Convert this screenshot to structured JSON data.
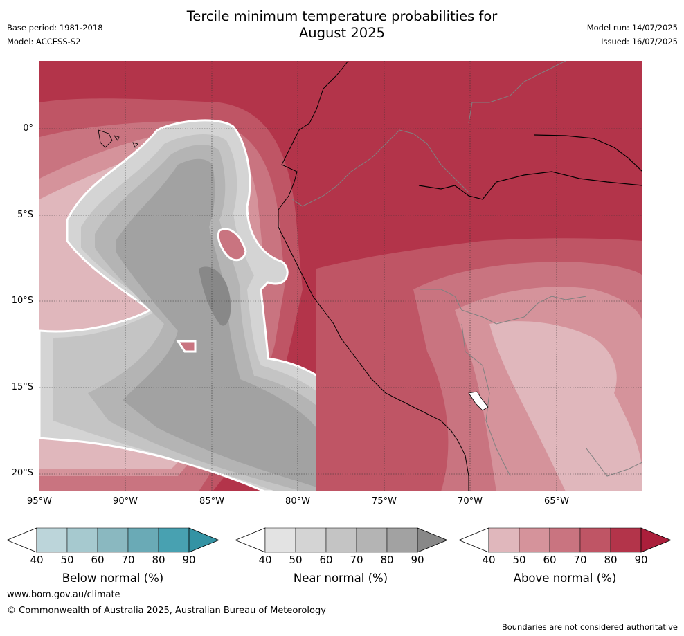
{
  "title": {
    "line1": "Tercile minimum temperature probabilities for",
    "line2": "August 2025"
  },
  "meta_left": {
    "base_period": "Base period: 1981-2018",
    "model": "Model: ACCESS-S2"
  },
  "meta_right": {
    "model_run": "Model run: 14/07/2025",
    "issued": "Issued: 16/07/2025"
  },
  "lat_labels": [
    "0°",
    "5°S",
    "10°S",
    "15°S",
    "20°S"
  ],
  "lon_labels": [
    "95°W",
    "90°W",
    "85°W",
    "80°W",
    "75°W",
    "70°W",
    "65°W"
  ],
  "colorbars": [
    {
      "title": "Below normal (%)",
      "ticks": [
        "40",
        "50",
        "60",
        "70",
        "80",
        "90"
      ],
      "colors": [
        "#bcd5da",
        "#a6c9cf",
        "#8ab8c0",
        "#6aaab6",
        "#48a1b1",
        "#3493a4"
      ]
    },
    {
      "title": "Near normal (%)",
      "ticks": [
        "40",
        "50",
        "60",
        "70",
        "80",
        "90"
      ],
      "colors": [
        "#e3e3e3",
        "#d4d4d4",
        "#c4c4c4",
        "#b4b4b4",
        "#a2a2a2",
        "#888888"
      ]
    },
    {
      "title": "Above normal (%)",
      "ticks": [
        "40",
        "50",
        "60",
        "70",
        "80",
        "90"
      ],
      "colors": [
        "#e0b7bc",
        "#d5939b",
        "#c97480",
        "#bf5565",
        "#b3344a",
        "#ab1f3b"
      ]
    }
  ],
  "footer": {
    "url": "www.bom.gov.au/climate",
    "copyright": "© Commonwealth of Australia 2025, Australian Bureau of Meteorology",
    "note": "Boundaries are not considered authoritative"
  }
}
